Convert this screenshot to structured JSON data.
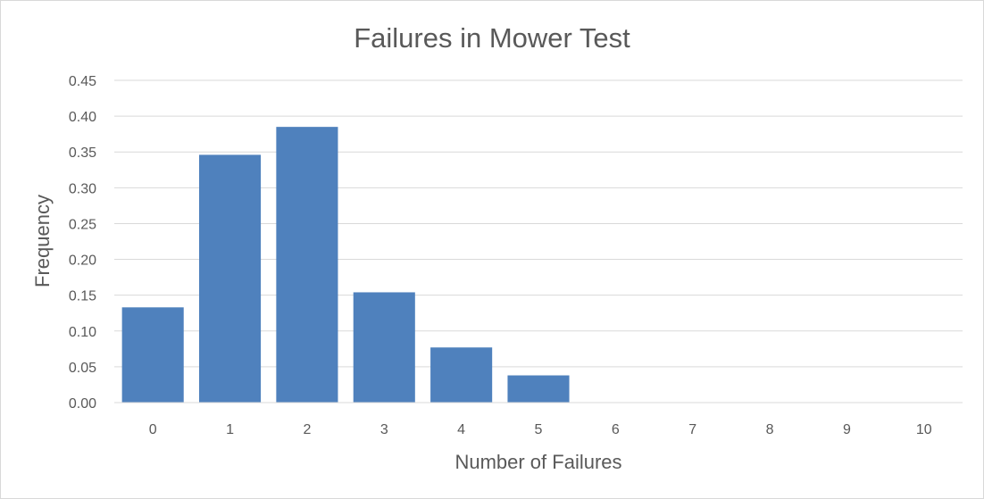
{
  "chart_data": {
    "type": "bar",
    "title": "Failures in Mower Test",
    "xlabel": "Number of Failures",
    "ylabel": "Frequency",
    "categories": [
      "0",
      "1",
      "2",
      "3",
      "4",
      "5",
      "6",
      "7",
      "8",
      "9",
      "10"
    ],
    "series": [
      {
        "values": [
          0.133,
          0.346,
          0.385,
          0.154,
          0.077,
          0.038,
          0,
          0,
          0,
          0,
          0
        ]
      }
    ],
    "ylim": [
      0,
      0.45
    ],
    "yticks": [
      "0.00",
      "0.05",
      "0.10",
      "0.15",
      "0.20",
      "0.25",
      "0.30",
      "0.35",
      "0.40",
      "0.45"
    ],
    "ytick_values": [
      0,
      0.05,
      0.1,
      0.15,
      0.2,
      0.25,
      0.3,
      0.35,
      0.4,
      0.45
    ],
    "grid": true,
    "legend": "none",
    "colors": {
      "bar": "#4f81bd",
      "text": "#595959",
      "grid": "#d9d9d9"
    }
  }
}
